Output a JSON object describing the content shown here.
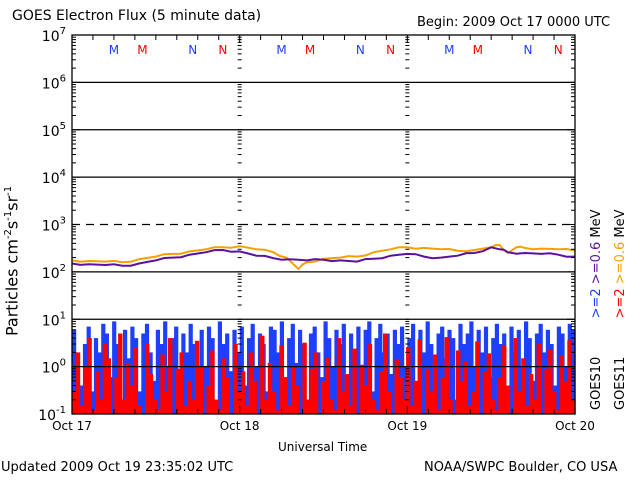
{
  "header": {
    "title": "GOES Electron Flux (5 minute data)",
    "begin": "Begin: 2009 Oct 17 0000 UTC"
  },
  "footer": {
    "updated": "Updated 2009 Oct 19 23:35:02 UTC",
    "credit": "NOAA/SWPC Boulder, CO USA"
  },
  "colors": {
    "goes10_high": "#1f3fff",
    "goes11_high": "#ff0000",
    "goes10_low": "#5a10a0",
    "goes11_low": "#f5a000",
    "axis": "#000000"
  },
  "chart_data": {
    "type": "line",
    "title": "GOES Electron Flux (5 minute data)",
    "xlabel": "Universal Time",
    "ylabel_parts": {
      "base": "Particles cm",
      "e1": "-2",
      "s": "s",
      "e2": "-1",
      "sr": "sr",
      "e3": "-1"
    },
    "yscale": "log",
    "ylim": [
      0.1,
      10000000
    ],
    "y_ticks": [
      {
        "base": "10",
        "exp": "7"
      },
      {
        "base": "10",
        "exp": "6"
      },
      {
        "base": "10",
        "exp": "5"
      },
      {
        "base": "10",
        "exp": "4"
      },
      {
        "base": "10",
        "exp": "3"
      },
      {
        "base": "10",
        "exp": "2"
      },
      {
        "base": "10",
        "exp": "1"
      },
      {
        "base": "10",
        "exp": "0"
      },
      {
        "base": "10",
        "exp": "-1"
      }
    ],
    "y_tick_values": [
      10000000,
      1000000,
      100000,
      10000,
      1000,
      100,
      10,
      1,
      0.1
    ],
    "xlim_days": [
      0,
      3
    ],
    "x_ticks": [
      {
        "label": "Oct 17",
        "day": 0
      },
      {
        "label": "Oct 18",
        "day": 1
      },
      {
        "label": "Oct 19",
        "day": 2
      },
      {
        "label": "Oct 20",
        "day": 3
      }
    ],
    "threshold_line": {
      "value": 1000,
      "style": "dashed"
    },
    "grid": "horizontal lines at each decade",
    "midnight_noon_markers": [
      {
        "label": "M",
        "satellite": "GOES10",
        "day": 0.25
      },
      {
        "label": "M",
        "satellite": "GOES11",
        "day": 0.42
      },
      {
        "label": "N",
        "satellite": "GOES10",
        "day": 0.72
      },
      {
        "label": "N",
        "satellite": "GOES11",
        "day": 0.9
      },
      {
        "label": "M",
        "satellite": "GOES10",
        "day": 1.25
      },
      {
        "label": "M",
        "satellite": "GOES11",
        "day": 1.42
      },
      {
        "label": "N",
        "satellite": "GOES10",
        "day": 1.72
      },
      {
        "label": "N",
        "satellite": "GOES11",
        "day": 1.9
      },
      {
        "label": "M",
        "satellite": "GOES10",
        "day": 2.25
      },
      {
        "label": "M",
        "satellite": "GOES11",
        "day": 2.42
      },
      {
        "label": "N",
        "satellite": "GOES10",
        "day": 2.72
      },
      {
        "label": "N",
        "satellite": "GOES11",
        "day": 2.9
      }
    ],
    "legend_placement": "right (rotated)",
    "legend": [
      {
        "satellite": "GOES10",
        "high": ">=2",
        "low": ">=0.6",
        "unit": "MeV"
      },
      {
        "satellite": "GOES11",
        "high": ">=2",
        "low": ">=0.6",
        "unit": "MeV"
      }
    ],
    "series": [
      {
        "name": "GOES11 >=0.6 MeV",
        "style": "line",
        "x_days": [
          0,
          0.1,
          0.2,
          0.3,
          0.4,
          0.5,
          0.6,
          0.7,
          0.8,
          0.9,
          1.0,
          1.1,
          1.2,
          1.28,
          1.35,
          1.4,
          1.5,
          1.6,
          1.7,
          1.8,
          1.9,
          2.0,
          2.1,
          2.2,
          2.3,
          2.4,
          2.5,
          2.55,
          2.6,
          2.65,
          2.7,
          2.8,
          2.9,
          3.0
        ],
        "values": [
          175,
          170,
          165,
          160,
          185,
          210,
          240,
          270,
          300,
          330,
          350,
          300,
          260,
          200,
          115,
          160,
          190,
          200,
          210,
          260,
          300,
          330,
          320,
          300,
          280,
          290,
          330,
          370,
          250,
          330,
          320,
          310,
          300,
          280
        ]
      },
      {
        "name": "GOES10 >=0.6 MeV",
        "style": "line",
        "x_days": [
          0,
          0.1,
          0.2,
          0.3,
          0.4,
          0.5,
          0.6,
          0.7,
          0.8,
          0.9,
          1.0,
          1.1,
          1.2,
          1.3,
          1.4,
          1.5,
          1.6,
          1.7,
          1.8,
          1.9,
          2.0,
          2.1,
          2.2,
          2.3,
          2.4,
          2.5,
          2.55,
          2.6,
          2.7,
          2.8,
          2.9,
          3.0
        ],
        "values": [
          150,
          145,
          140,
          135,
          150,
          175,
          200,
          230,
          260,
          290,
          270,
          220,
          195,
          185,
          175,
          180,
          175,
          165,
          190,
          220,
          240,
          210,
          200,
          220,
          250,
          330,
          300,
          260,
          250,
          240,
          230,
          210
        ]
      },
      {
        "name": "GOES10 >=2 MeV",
        "style": "bars",
        "note": "noisy, values span ~0.1 to ~10",
        "values": [
          6,
          1,
          0.4,
          3,
          7,
          0.3,
          4,
          2,
          8,
          5,
          0.6,
          9,
          3,
          0.2,
          6,
          1.5,
          7,
          4,
          0.3,
          5,
          8,
          2,
          0.5,
          6,
          3,
          9,
          1,
          4,
          7,
          0.4,
          5,
          2,
          8,
          3,
          0.6,
          6,
          1,
          7,
          4,
          0.2,
          9,
          3,
          5,
          0.8,
          6,
          2,
          7,
          0.4,
          4,
          8,
          1,
          5,
          3,
          0.3,
          7,
          6,
          2,
          9,
          0.5,
          4,
          8,
          1.2,
          6,
          3,
          0.2,
          5,
          7,
          2,
          0.6,
          9,
          4,
          1,
          6,
          3,
          8,
          0.4,
          5,
          2,
          7,
          1,
          6,
          9,
          0.3,
          4,
          8,
          2,
          5,
          0.7,
          6,
          3,
          7,
          1,
          4,
          8,
          0.5,
          6,
          2,
          9,
          3,
          0.4,
          5,
          7,
          1.5,
          6,
          4,
          0.2,
          8,
          3,
          5,
          9,
          1,
          6,
          2,
          7,
          0.6,
          4,
          8,
          3,
          5,
          0.3,
          7,
          2,
          6,
          1,
          9,
          4,
          0.5,
          5,
          8,
          2,
          6,
          3,
          0.4,
          7,
          5,
          1,
          8,
          6
        ]
      },
      {
        "name": "GOES11 >=2 MeV",
        "style": "bars",
        "note": "noisy, values span ~0.1 to ~6",
        "values": [
          0.3,
          2,
          0.15,
          1,
          4,
          0.12,
          0.8,
          0.2,
          3,
          1.5,
          0.1,
          0.6,
          5,
          0.2,
          1.2,
          0.4,
          2.5,
          0.15,
          0.1,
          3,
          0.7,
          0.2,
          0.12,
          1.8,
          0.3,
          4,
          0.1,
          0.9,
          2,
          0.15,
          0.5,
          0.2,
          3.5,
          1,
          0.1,
          0.4,
          2.2,
          0.2,
          0.12,
          1.5,
          0.6,
          0.1,
          3,
          0.3,
          0.8,
          0.15,
          2,
          0.5,
          0.1,
          4.5,
          0.2,
          1.2,
          0.3,
          0.12,
          2.8,
          0.6,
          0.15,
          1,
          0.4,
          0.1,
          3.2,
          0.2,
          0.9,
          2,
          0.1,
          0.5,
          1.6,
          0.2,
          0.12,
          4,
          0.3,
          0.7,
          0.15,
          2.4,
          0.1,
          1.1,
          0.4,
          3,
          0.2,
          0.12,
          0.8,
          5,
          0.3,
          0.1,
          1.4,
          0.6,
          0.2,
          2.6,
          0.15,
          0.5,
          3.8,
          0.1,
          0.9,
          0.3,
          1.8,
          0.12,
          0.6,
          4.2,
          0.2,
          0.1,
          2.2,
          0.5,
          1.3,
          0.15,
          0.3,
          3.4,
          0.1,
          0.8,
          1.9,
          0.2,
          0.12,
          0.6,
          2.8,
          0.4,
          0.1,
          4,
          0.3,
          1.5,
          0.15,
          0.7,
          0.2,
          3.1,
          0.1,
          0.9,
          2.3,
          0.3,
          0.12,
          1.7,
          0.5,
          3.6,
          0.2
        ]
      }
    ]
  }
}
